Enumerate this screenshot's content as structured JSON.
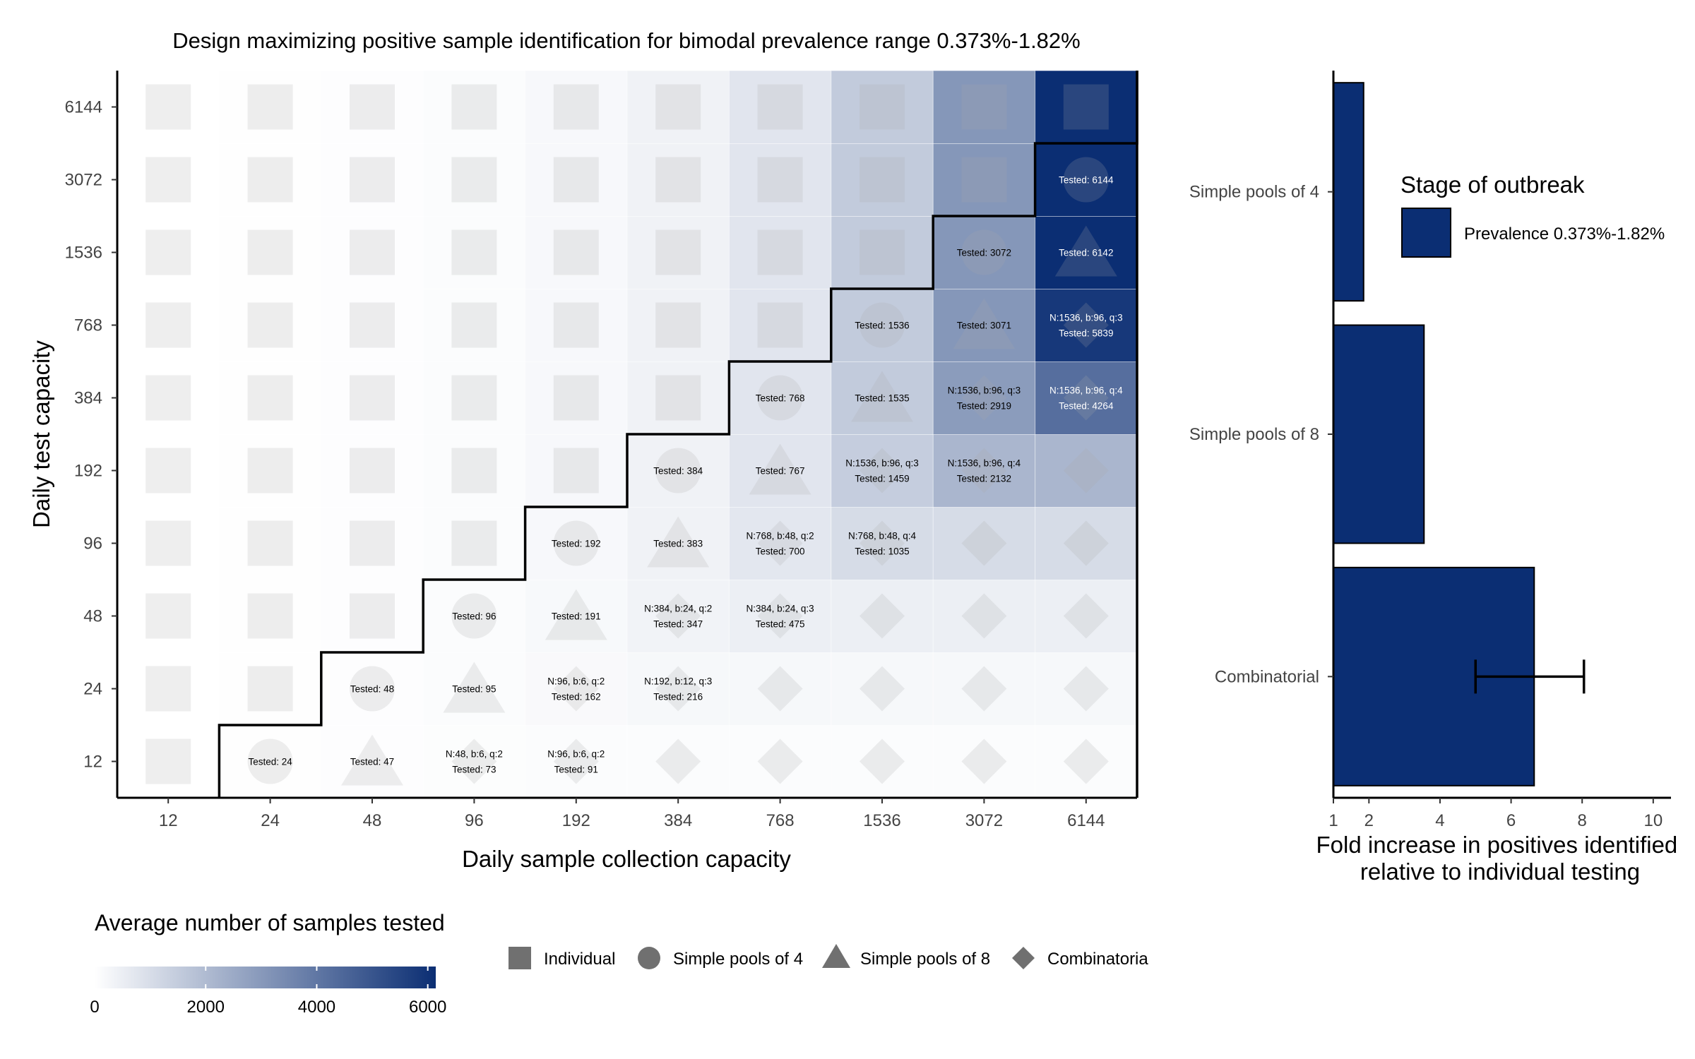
{
  "chart_data": [
    {
      "type": "heatmap",
      "title": "Design maximizing positive sample identification for bimodal prevalence range 0.373%-1.82%",
      "xlabel": "Daily sample collection capacity",
      "ylabel": "Daily test capacity",
      "x_categories": [
        "12",
        "24",
        "48",
        "96",
        "192",
        "384",
        "768",
        "1536",
        "3072",
        "6144"
      ],
      "y_categories": [
        "12",
        "24",
        "48",
        "96",
        "192",
        "384",
        "768",
        "1536",
        "3072",
        "6144"
      ],
      "grid": true,
      "color_scale": {
        "title": "Average number of samples tested",
        "min": 0,
        "max": 6144,
        "ticks": [
          "0",
          "2000",
          "4000",
          "6000"
        ],
        "low_color": "#ffffff",
        "high_color": "#0b2e73"
      },
      "shape_legend": [
        {
          "label": "Individual",
          "shape": "square"
        },
        {
          "label": "Simple pools of 4",
          "shape": "circle"
        },
        {
          "label": "Simple pools of 8",
          "shape": "triangle"
        },
        {
          "label": "Combinatoria",
          "shape": "diamond"
        }
      ],
      "cells": [
        {
          "x": "12",
          "y": "12",
          "value": 12,
          "shape": "square"
        },
        {
          "x": "24",
          "y": "12",
          "value": 24,
          "shape": "circle",
          "label": [
            "Tested: 24"
          ]
        },
        {
          "x": "48",
          "y": "12",
          "value": 47,
          "shape": "triangle",
          "label": [
            "Tested: 47"
          ]
        },
        {
          "x": "96",
          "y": "12",
          "value": 73,
          "shape": "diamond",
          "label": [
            "N:48, b:6, q:2",
            "Tested: 73"
          ]
        },
        {
          "x": "192",
          "y": "12",
          "value": 91,
          "shape": "diamond",
          "label": [
            "N:96, b:6, q:2",
            "Tested: 91"
          ]
        },
        {
          "x": "384",
          "y": "12",
          "value": 91,
          "shape": "diamond"
        },
        {
          "x": "768",
          "y": "12",
          "value": 91,
          "shape": "diamond"
        },
        {
          "x": "1536",
          "y": "12",
          "value": 91,
          "shape": "diamond"
        },
        {
          "x": "3072",
          "y": "12",
          "value": 91,
          "shape": "diamond"
        },
        {
          "x": "6144",
          "y": "12",
          "value": 91,
          "shape": "diamond"
        },
        {
          "x": "12",
          "y": "24",
          "value": 12,
          "shape": "square"
        },
        {
          "x": "24",
          "y": "24",
          "value": 24,
          "shape": "square"
        },
        {
          "x": "48",
          "y": "24",
          "value": 48,
          "shape": "circle",
          "label": [
            "Tested: 48"
          ]
        },
        {
          "x": "96",
          "y": "24",
          "value": 95,
          "shape": "triangle",
          "label": [
            "Tested: 95"
          ]
        },
        {
          "x": "192",
          "y": "24",
          "value": 162,
          "shape": "diamond",
          "label": [
            "N:96, b:6, q:2",
            "Tested: 162"
          ]
        },
        {
          "x": "384",
          "y": "24",
          "value": 216,
          "shape": "diamond",
          "label": [
            "N:192, b:12, q:3",
            "Tested: 216"
          ]
        },
        {
          "x": "768",
          "y": "24",
          "value": 216,
          "shape": "diamond"
        },
        {
          "x": "1536",
          "y": "24",
          "value": 216,
          "shape": "diamond"
        },
        {
          "x": "3072",
          "y": "24",
          "value": 216,
          "shape": "diamond"
        },
        {
          "x": "6144",
          "y": "24",
          "value": 216,
          "shape": "diamond"
        },
        {
          "x": "12",
          "y": "48",
          "value": 12,
          "shape": "square"
        },
        {
          "x": "24",
          "y": "48",
          "value": 24,
          "shape": "square"
        },
        {
          "x": "48",
          "y": "48",
          "value": 48,
          "shape": "square"
        },
        {
          "x": "96",
          "y": "48",
          "value": 96,
          "shape": "circle",
          "label": [
            "Tested: 96"
          ]
        },
        {
          "x": "192",
          "y": "48",
          "value": 191,
          "shape": "triangle",
          "label": [
            "Tested: 191"
          ]
        },
        {
          "x": "384",
          "y": "48",
          "value": 347,
          "shape": "diamond",
          "label": [
            "N:384, b:24, q:2",
            "Tested: 347"
          ]
        },
        {
          "x": "768",
          "y": "48",
          "value": 475,
          "shape": "diamond",
          "label": [
            "N:384, b:24, q:3",
            "Tested: 475"
          ]
        },
        {
          "x": "1536",
          "y": "48",
          "value": 475,
          "shape": "diamond"
        },
        {
          "x": "3072",
          "y": "48",
          "value": 475,
          "shape": "diamond"
        },
        {
          "x": "6144",
          "y": "48",
          "value": 475,
          "shape": "diamond"
        },
        {
          "x": "12",
          "y": "96",
          "value": 12,
          "shape": "square"
        },
        {
          "x": "24",
          "y": "96",
          "value": 24,
          "shape": "square"
        },
        {
          "x": "48",
          "y": "96",
          "value": 48,
          "shape": "square"
        },
        {
          "x": "96",
          "y": "96",
          "value": 96,
          "shape": "square"
        },
        {
          "x": "192",
          "y": "96",
          "value": 192,
          "shape": "circle",
          "label": [
            "Tested: 192"
          ]
        },
        {
          "x": "384",
          "y": "96",
          "value": 383,
          "shape": "triangle",
          "label": [
            "Tested: 383"
          ]
        },
        {
          "x": "768",
          "y": "96",
          "value": 700,
          "shape": "diamond",
          "label": [
            "N:768, b:48, q:2",
            "Tested: 700"
          ]
        },
        {
          "x": "1536",
          "y": "96",
          "value": 1035,
          "shape": "diamond",
          "label": [
            "N:768, b:48, q:4",
            "Tested: 1035"
          ]
        },
        {
          "x": "3072",
          "y": "96",
          "value": 1035,
          "shape": "diamond"
        },
        {
          "x": "6144",
          "y": "96",
          "value": 1035,
          "shape": "diamond"
        },
        {
          "x": "12",
          "y": "192",
          "value": 12,
          "shape": "square"
        },
        {
          "x": "24",
          "y": "192",
          "value": 24,
          "shape": "square"
        },
        {
          "x": "48",
          "y": "192",
          "value": 48,
          "shape": "square"
        },
        {
          "x": "96",
          "y": "192",
          "value": 96,
          "shape": "square"
        },
        {
          "x": "192",
          "y": "192",
          "value": 192,
          "shape": "square"
        },
        {
          "x": "384",
          "y": "192",
          "value": 384,
          "shape": "circle",
          "label": [
            "Tested: 384"
          ]
        },
        {
          "x": "768",
          "y": "192",
          "value": 767,
          "shape": "triangle",
          "label": [
            "Tested: 767"
          ]
        },
        {
          "x": "1536",
          "y": "192",
          "value": 1459,
          "shape": "diamond",
          "label": [
            "N:1536, b:96, q:3",
            "Tested: 1459"
          ]
        },
        {
          "x": "3072",
          "y": "192",
          "value": 2132,
          "shape": "diamond",
          "label": [
            "N:1536, b:96, q:4",
            "Tested: 2132"
          ]
        },
        {
          "x": "6144",
          "y": "192",
          "value": 2132,
          "shape": "diamond"
        },
        {
          "x": "12",
          "y": "384",
          "value": 12,
          "shape": "square"
        },
        {
          "x": "24",
          "y": "384",
          "value": 24,
          "shape": "square"
        },
        {
          "x": "48",
          "y": "384",
          "value": 48,
          "shape": "square"
        },
        {
          "x": "96",
          "y": "384",
          "value": 96,
          "shape": "square"
        },
        {
          "x": "192",
          "y": "384",
          "value": 192,
          "shape": "square"
        },
        {
          "x": "384",
          "y": "384",
          "value": 384,
          "shape": "square"
        },
        {
          "x": "768",
          "y": "384",
          "value": 768,
          "shape": "circle",
          "label": [
            "Tested: 768"
          ]
        },
        {
          "x": "1536",
          "y": "384",
          "value": 1535,
          "shape": "triangle",
          "label": [
            "Tested: 1535"
          ]
        },
        {
          "x": "3072",
          "y": "384",
          "value": 2919,
          "shape": "diamond",
          "label": [
            "N:1536, b:96, q:3",
            "Tested: 2919"
          ]
        },
        {
          "x": "6144",
          "y": "384",
          "value": 4264,
          "shape": "diamond",
          "label": [
            "N:1536, b:96, q:4",
            "Tested: 4264"
          ]
        },
        {
          "x": "12",
          "y": "768",
          "value": 12,
          "shape": "square"
        },
        {
          "x": "24",
          "y": "768",
          "value": 24,
          "shape": "square"
        },
        {
          "x": "48",
          "y": "768",
          "value": 48,
          "shape": "square"
        },
        {
          "x": "96",
          "y": "768",
          "value": 96,
          "shape": "square"
        },
        {
          "x": "192",
          "y": "768",
          "value": 192,
          "shape": "square"
        },
        {
          "x": "384",
          "y": "768",
          "value": 384,
          "shape": "square"
        },
        {
          "x": "768",
          "y": "768",
          "value": 768,
          "shape": "square"
        },
        {
          "x": "1536",
          "y": "768",
          "value": 1536,
          "shape": "circle",
          "label": [
            "Tested: 1536"
          ]
        },
        {
          "x": "3072",
          "y": "768",
          "value": 3071,
          "shape": "triangle",
          "label": [
            "Tested: 3071"
          ]
        },
        {
          "x": "6144",
          "y": "768",
          "value": 5839,
          "shape": "diamond",
          "label": [
            "N:1536, b:96, q:3",
            "Tested: 5839"
          ]
        },
        {
          "x": "12",
          "y": "1536",
          "value": 12,
          "shape": "square"
        },
        {
          "x": "24",
          "y": "1536",
          "value": 24,
          "shape": "square"
        },
        {
          "x": "48",
          "y": "1536",
          "value": 48,
          "shape": "square"
        },
        {
          "x": "96",
          "y": "1536",
          "value": 96,
          "shape": "square"
        },
        {
          "x": "192",
          "y": "1536",
          "value": 192,
          "shape": "square"
        },
        {
          "x": "384",
          "y": "1536",
          "value": 384,
          "shape": "square"
        },
        {
          "x": "768",
          "y": "1536",
          "value": 768,
          "shape": "square"
        },
        {
          "x": "1536",
          "y": "1536",
          "value": 1536,
          "shape": "square"
        },
        {
          "x": "3072",
          "y": "1536",
          "value": 3072,
          "shape": "circle",
          "label": [
            "Tested: 3072"
          ]
        },
        {
          "x": "6144",
          "y": "1536",
          "value": 6142,
          "shape": "triangle",
          "label": [
            "Tested: 6142"
          ]
        },
        {
          "x": "12",
          "y": "3072",
          "value": 12,
          "shape": "square"
        },
        {
          "x": "24",
          "y": "3072",
          "value": 24,
          "shape": "square"
        },
        {
          "x": "48",
          "y": "3072",
          "value": 48,
          "shape": "square"
        },
        {
          "x": "96",
          "y": "3072",
          "value": 96,
          "shape": "square"
        },
        {
          "x": "192",
          "y": "3072",
          "value": 192,
          "shape": "square"
        },
        {
          "x": "384",
          "y": "3072",
          "value": 384,
          "shape": "square"
        },
        {
          "x": "768",
          "y": "3072",
          "value": 768,
          "shape": "square"
        },
        {
          "x": "1536",
          "y": "3072",
          "value": 1536,
          "shape": "square"
        },
        {
          "x": "3072",
          "y": "3072",
          "value": 3072,
          "shape": "square"
        },
        {
          "x": "6144",
          "y": "3072",
          "value": 6144,
          "shape": "circle",
          "label": [
            "Tested: 6144"
          ]
        },
        {
          "x": "12",
          "y": "6144",
          "value": 12,
          "shape": "square"
        },
        {
          "x": "24",
          "y": "6144",
          "value": 24,
          "shape": "square"
        },
        {
          "x": "48",
          "y": "6144",
          "value": 48,
          "shape": "square"
        },
        {
          "x": "96",
          "y": "6144",
          "value": 96,
          "shape": "square"
        },
        {
          "x": "192",
          "y": "6144",
          "value": 192,
          "shape": "square"
        },
        {
          "x": "384",
          "y": "6144",
          "value": 384,
          "shape": "square"
        },
        {
          "x": "768",
          "y": "6144",
          "value": 768,
          "shape": "square"
        },
        {
          "x": "1536",
          "y": "6144",
          "value": 1536,
          "shape": "square"
        },
        {
          "x": "3072",
          "y": "6144",
          "value": 3072,
          "shape": "square"
        },
        {
          "x": "6144",
          "y": "6144",
          "value": 6144,
          "shape": "square"
        }
      ]
    },
    {
      "type": "bar",
      "orientation": "horizontal",
      "categories": [
        "Simple pools of 4",
        "Simple pools of 8",
        "Combinatorial"
      ],
      "series": [
        {
          "name": "Prevalence 0.373%-1.82%",
          "values": [
            1.85,
            3.55,
            6.65
          ],
          "error": [
            null,
            null,
            [
              5.0,
              8.05
            ]
          ],
          "color": "#0b2e73"
        }
      ],
      "xlabel": "Fold increase in positives identified relative to individual testing",
      "ylabel": "",
      "xlim": [
        1,
        10.5
      ],
      "xticks": [
        "1",
        "2",
        "4",
        "6",
        "8",
        "10"
      ],
      "legend": {
        "title": "Stage of outbreak",
        "placement": "top-right"
      },
      "grid": false
    }
  ]
}
